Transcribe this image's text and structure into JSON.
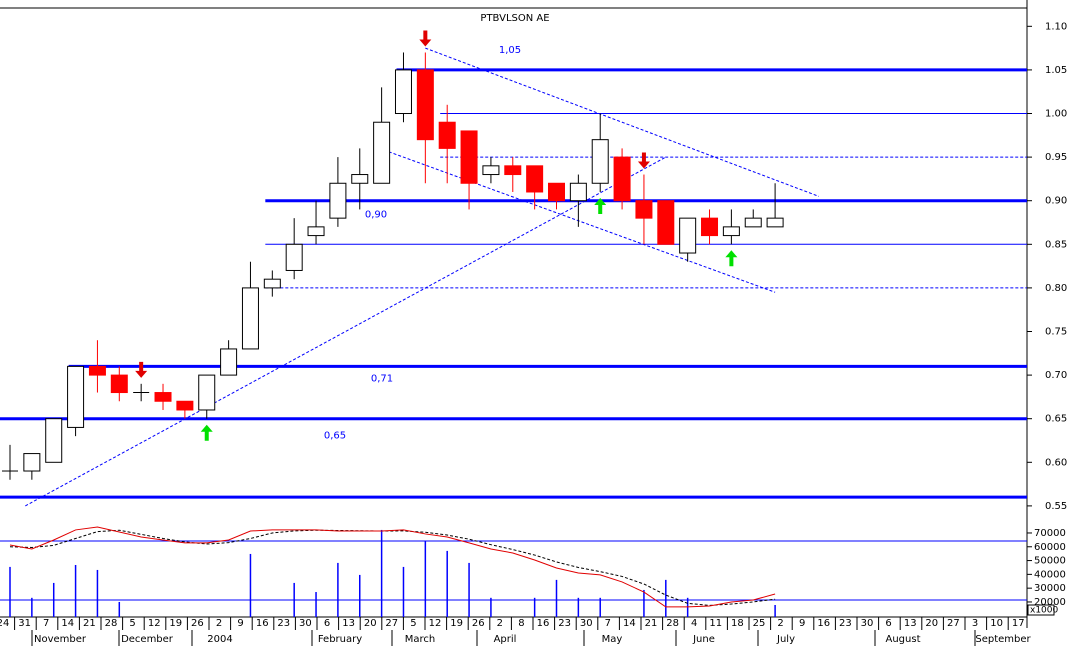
{
  "chart_data": [
    {
      "type": "candlestick",
      "title": "PTBVLSON AE",
      "open": [
        0.59,
        0.59,
        0.6,
        0.64,
        0.71,
        0.7,
        0.68,
        0.68,
        0.67,
        0.66,
        0.7,
        0.73,
        0.8,
        0.82,
        0.86,
        0.88,
        0.92,
        0.92,
        1.0,
        1.05,
        0.99,
        0.98,
        0.93,
        0.94,
        0.94,
        0.92,
        0.9,
        0.92,
        0.95,
        0.9,
        0.9,
        0.84,
        0.88,
        0.86,
        0.87,
        0.87
      ],
      "high": [
        0.62,
        0.61,
        0.65,
        0.71,
        0.74,
        0.71,
        0.69,
        0.69,
        0.67,
        0.7,
        0.74,
        0.83,
        0.82,
        0.88,
        0.9,
        0.95,
        0.96,
        1.03,
        1.07,
        1.07,
        1.01,
        0.98,
        0.95,
        0.95,
        0.94,
        0.92,
        0.93,
        1.0,
        0.96,
        0.93,
        0.9,
        0.88,
        0.89,
        0.89,
        0.89,
        0.92
      ],
      "low": [
        0.58,
        0.58,
        0.6,
        0.63,
        0.68,
        0.67,
        0.67,
        0.66,
        0.65,
        0.65,
        0.7,
        0.73,
        0.79,
        0.81,
        0.85,
        0.87,
        0.89,
        0.92,
        0.99,
        0.92,
        0.92,
        0.89,
        0.92,
        0.91,
        0.89,
        0.89,
        0.87,
        0.91,
        0.89,
        0.85,
        0.85,
        0.83,
        0.85,
        0.85,
        0.87,
        0.87
      ],
      "close": [
        0.59,
        0.61,
        0.65,
        0.71,
        0.7,
        0.68,
        0.68,
        0.67,
        0.66,
        0.7,
        0.73,
        0.8,
        0.81,
        0.85,
        0.87,
        0.92,
        0.93,
        0.99,
        1.05,
        0.97,
        0.96,
        0.92,
        0.94,
        0.93,
        0.91,
        0.9,
        0.92,
        0.97,
        0.9,
        0.88,
        0.85,
        0.88,
        0.86,
        0.87,
        0.88,
        0.88
      ],
      "up_color": "#ffffff",
      "down_color": "#ff0000",
      "ylim": [
        0.543,
        1.121
      ],
      "yticks": [
        0.55,
        {
          "value": 0.6,
          "label": "0.60"
        },
        0.65,
        {
          "value": 0.7,
          "label": "0.70"
        },
        0.75,
        {
          "value": 0.8,
          "label": "0.80"
        },
        0.85,
        {
          "value": 0.9,
          "label": "0.90"
        },
        0.95,
        {
          "value": 1.0,
          "label": "1.00"
        },
        1.05,
        {
          "value": 1.1,
          "label": "1.10"
        }
      ],
      "levels": [
        {
          "value": 1.05,
          "label": "1,05",
          "style": "thick",
          "from": 18
        },
        {
          "value": 0.9,
          "label": "0,90",
          "style": "thick",
          "from": 12
        },
        {
          "value": 0.71,
          "label": "0,71",
          "style": "thick",
          "from": 3
        },
        {
          "value": 0.65,
          "label": "0,65",
          "style": "thick",
          "from": 0
        },
        {
          "value": 0.56,
          "style": "thick",
          "from": 0
        },
        {
          "value": 1.0,
          "style": "thin",
          "from": 20
        },
        {
          "value": 0.85,
          "style": "thin",
          "from": 12
        },
        {
          "value": 0.95,
          "style": "dashed",
          "from": 20
        },
        {
          "value": 0.8,
          "style": "dashed",
          "from": 12
        }
      ],
      "level_color": "#0000ff",
      "trendlines": [
        {
          "x": [
            0.7,
            30
          ],
          "y": [
            0.55,
            0.95
          ]
        },
        {
          "x": [
            19,
            37
          ],
          "y": [
            1.075,
            0.905
          ]
        },
        {
          "x": [
            16.9,
            35
          ],
          "y": [
            0.96,
            0.795
          ]
        }
      ],
      "sell_signals": [
        19,
        6,
        29
      ],
      "buy_signals": [
        9,
        27,
        33
      ],
      "sell_color": "#e00000",
      "buy_color": "#00e000"
    },
    {
      "type": "volume",
      "values": [
        45400,
        23000,
        33800,
        46800,
        43200,
        20000,
        null,
        null,
        null,
        null,
        null,
        54800,
        null,
        33800,
        27200,
        48300,
        39600,
        72200,
        45400,
        64200,
        57000,
        48300,
        23000,
        null,
        23000,
        36000,
        23000,
        23000,
        null,
        28700,
        36000,
        23000,
        null,
        null,
        null,
        17800
      ],
      "color": "#0000ff",
      "ma": [
        61300,
        58400,
        64900,
        72200,
        74300,
        70700,
        67100,
        64900,
        62800,
        62800,
        64900,
        71400,
        72200,
        72200,
        72200,
        71400,
        71400,
        71400,
        72200,
        69300,
        67100,
        62800,
        58400,
        55500,
        50400,
        44600,
        41000,
        39600,
        34500,
        27200,
        16400,
        16400,
        17100,
        20000,
        21400,
        25800
      ],
      "ma_color": "#e00000",
      "signal": [
        60000,
        59500,
        61000,
        66000,
        71000,
        72000,
        69000,
        66000,
        63500,
        62000,
        63000,
        66000,
        70000,
        71500,
        72000,
        71800,
        71600,
        71400,
        71500,
        70500,
        68500,
        65500,
        61500,
        58000,
        54000,
        49000,
        45000,
        42000,
        38500,
        33000,
        25000,
        19000,
        17500,
        18500,
        20000,
        22000
      ],
      "signal_color": "#000000",
      "levels": [
        64200,
        21400
      ],
      "ylim": [
        9100,
        85200
      ],
      "yticks": [
        20000,
        30000,
        40000,
        50000,
        60000,
        70000
      ],
      "unit_label": "x1000",
      "week_labels": [
        "24",
        "31",
        "7",
        "14",
        "21",
        "28",
        "5",
        "12",
        "19",
        "26",
        "2",
        "9",
        "16",
        "23",
        "30",
        "6",
        "13",
        "20",
        "27",
        "5",
        "12",
        "19",
        "26",
        "2",
        "8",
        "16",
        "23",
        "30",
        "7",
        "14",
        "21",
        "28",
        "4",
        "11",
        "18",
        "25",
        "2",
        "9",
        "16",
        "23",
        "30",
        "6",
        "13",
        "20",
        "27",
        "3",
        "10",
        "17"
      ],
      "month_labels": [
        "November",
        "December",
        "2004",
        "February",
        "March",
        "April",
        "May",
        "June",
        "July",
        "August",
        "September"
      ]
    }
  ]
}
